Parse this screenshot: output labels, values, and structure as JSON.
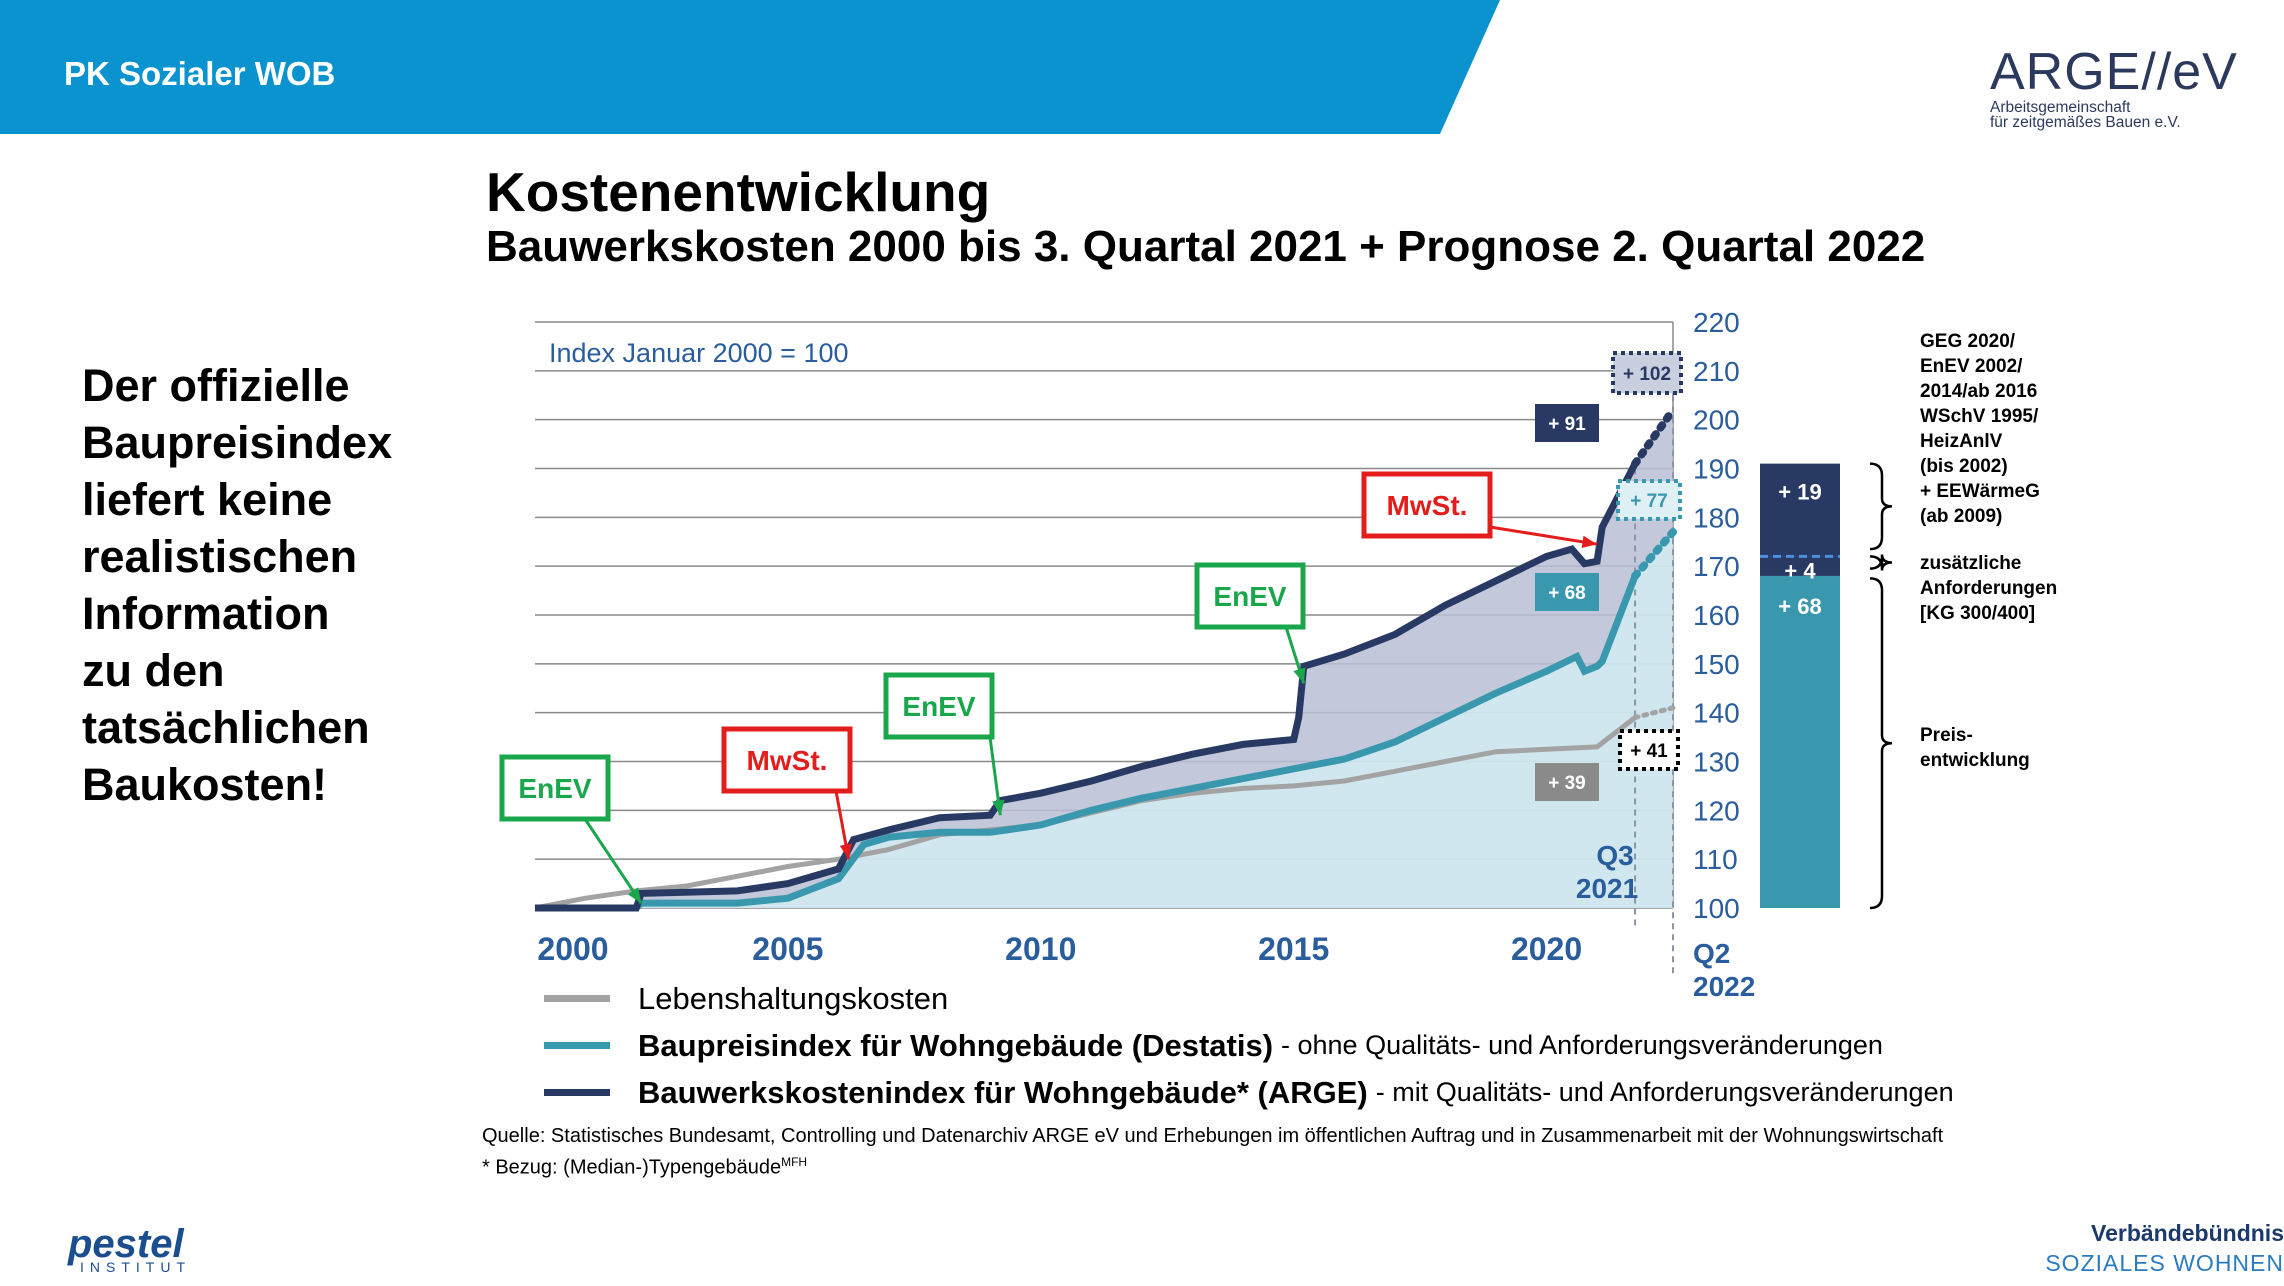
{
  "header": {
    "title": "PK Sozialer WOB",
    "logo_main": "ARGE//eV",
    "logo_line1": "Arbeitsgemeinschaft",
    "logo_line2": "für zeitgemäßes Bauen e.V."
  },
  "slide": {
    "title": "Kostenentwicklung",
    "subtitle": "Bauwerkskosten 2000 bis 3. Quartal 2021 + Prognose 2. Quartal 2022",
    "left_text": [
      "Der offizielle",
      "Baupreisindex",
      "liefert keine",
      "realistischen",
      "Information",
      "zu den",
      "tatsächlichen",
      "Baukosten!"
    ]
  },
  "chart_data": {
    "type": "line",
    "index_note": "Index Januar 2000 = 100",
    "ylim": [
      100,
      220
    ],
    "yticks": [
      100,
      110,
      120,
      130,
      140,
      150,
      160,
      170,
      180,
      190,
      200,
      210,
      220
    ],
    "xlim": [
      2000,
      2022.5
    ],
    "xtick_labels": [
      {
        "x": 2000,
        "label": "2000"
      },
      {
        "x": 2005,
        "label": "2005"
      },
      {
        "x": 2010,
        "label": "2010"
      },
      {
        "x": 2015,
        "label": "2015"
      },
      {
        "x": 2020,
        "label": "2020"
      }
    ],
    "q3_label": [
      "Q3",
      "2021"
    ],
    "q2_label": [
      "Q2",
      "2022"
    ],
    "grid": true,
    "series": [
      {
        "name": "Lebenshaltungskosten",
        "color": "#a3a3a3",
        "points": [
          [
            2000,
            100
          ],
          [
            2001,
            102
          ],
          [
            2002,
            103.5
          ],
          [
            2003,
            104.5
          ],
          [
            2004,
            106.5
          ],
          [
            2005,
            108.5
          ],
          [
            2006,
            110
          ],
          [
            2007,
            112
          ],
          [
            2008,
            115
          ],
          [
            2009,
            116
          ],
          [
            2010,
            117
          ],
          [
            2011,
            119.5
          ],
          [
            2012,
            122
          ],
          [
            2013,
            123.5
          ],
          [
            2014,
            124.5
          ],
          [
            2015,
            125
          ],
          [
            2016,
            126
          ],
          [
            2017,
            128
          ],
          [
            2018,
            130
          ],
          [
            2019,
            132
          ],
          [
            2020,
            132.5
          ],
          [
            2021,
            133
          ],
          [
            2021.75,
            139
          ]
        ],
        "forecast": [
          [
            2021.75,
            139
          ],
          [
            2022.5,
            141
          ]
        ]
      },
      {
        "name": "Baupreisindex für Wohngebäude (Destatis)",
        "note": "- ohne Qualitäts- und Anforderungsveränderungen",
        "color": "#3a98ae",
        "points": [
          [
            2000,
            100
          ],
          [
            2002,
            100
          ],
          [
            2002.1,
            101
          ],
          [
            2004,
            101
          ],
          [
            2004.5,
            101.5
          ],
          [
            2005,
            102
          ],
          [
            2006,
            106
          ],
          [
            2006.5,
            113
          ],
          [
            2007,
            114.5
          ],
          [
            2008,
            115.5
          ],
          [
            2009,
            115.5
          ],
          [
            2010,
            117
          ],
          [
            2011,
            120
          ],
          [
            2012,
            122.5
          ],
          [
            2013,
            124.5
          ],
          [
            2014,
            126.5
          ],
          [
            2015,
            128.5
          ],
          [
            2016,
            130.5
          ],
          [
            2017,
            134
          ],
          [
            2018,
            139
          ],
          [
            2019,
            144
          ],
          [
            2020,
            148.5
          ],
          [
            2020.6,
            151.5
          ],
          [
            2020.75,
            148.5
          ],
          [
            2021,
            149.5
          ],
          [
            2021.1,
            150.5
          ],
          [
            2021.75,
            168
          ]
        ],
        "forecast": [
          [
            2021.75,
            168
          ],
          [
            2022.5,
            177
          ]
        ]
      },
      {
        "name": "Bauwerkskostenindex für Wohngebäude* (ARGE)",
        "note": "- mit Qualitäts- und Anforderungsveränderungen",
        "color": "#283a63",
        "points": [
          [
            2000,
            100
          ],
          [
            2002,
            100
          ],
          [
            2002.1,
            103
          ],
          [
            2004,
            103.5
          ],
          [
            2005,
            105
          ],
          [
            2006,
            108
          ],
          [
            2006.3,
            114
          ],
          [
            2007,
            116
          ],
          [
            2008,
            118.5
          ],
          [
            2009,
            119
          ],
          [
            2009.2,
            122
          ],
          [
            2010,
            123.5
          ],
          [
            2011,
            126
          ],
          [
            2012,
            129
          ],
          [
            2013,
            131.5
          ],
          [
            2014,
            133.5
          ],
          [
            2015,
            134.5
          ],
          [
            2015.1,
            139
          ],
          [
            2015.2,
            149.5
          ],
          [
            2016,
            152
          ],
          [
            2017,
            156
          ],
          [
            2018,
            162
          ],
          [
            2019,
            167
          ],
          [
            2020,
            172
          ],
          [
            2020.5,
            173.5
          ],
          [
            2020.75,
            170.5
          ],
          [
            2021,
            171
          ],
          [
            2021.1,
            178
          ],
          [
            2021.75,
            191
          ]
        ],
        "forecast": [
          [
            2021.75,
            191
          ],
          [
            2022.5,
            202
          ]
        ]
      }
    ],
    "value_labels": [
      {
        "series": 2,
        "text": "+ 91",
        "style": "solid"
      },
      {
        "series": 2,
        "text": "+ 102",
        "style": "dotted"
      },
      {
        "series": 1,
        "text": "+ 68",
        "style": "solid"
      },
      {
        "series": 1,
        "text": "+ 77",
        "style": "dotted"
      },
      {
        "series": 0,
        "text": "+ 39",
        "style": "solid"
      },
      {
        "series": 0,
        "text": "+ 41",
        "style": "dotted"
      }
    ],
    "annotations": [
      {
        "text": "EnEV",
        "kind": "green",
        "target": [
          2002.1,
          101
        ]
      },
      {
        "text": "MwSt.",
        "kind": "red",
        "target": [
          2006.2,
          110
        ]
      },
      {
        "text": "EnEV",
        "kind": "green",
        "target": [
          2009.2,
          119
        ]
      },
      {
        "text": "EnEV",
        "kind": "green",
        "target": [
          2015.2,
          146
        ]
      },
      {
        "text": "MwSt.",
        "kind": "red",
        "target": [
          2021,
          174.5
        ]
      }
    ],
    "stack_bar": {
      "segments": [
        {
          "label": "+ 68",
          "from": 100,
          "to": 168,
          "color": "#3a98ae"
        },
        {
          "label": "+ 4",
          "from": 168,
          "to": 172,
          "color": "#283a63"
        },
        {
          "label": "+ 19",
          "from": 172,
          "to": 191,
          "color": "#283a63"
        }
      ]
    },
    "brackets": [
      {
        "lines": [
          "GEG 2020/",
          "EnEV 2002/",
          "2014/ab 2016",
          "WSchV 1995/",
          "HeizAnlV",
          "(bis 2002)",
          "+ EEWärmeG",
          "(ab 2009)"
        ]
      },
      {
        "lines": [
          "zusätzliche",
          "Anforderungen",
          "[KG 300/400]"
        ]
      },
      {
        "lines": [
          "Preis-",
          "entwicklung"
        ]
      }
    ]
  },
  "source": {
    "line1": "Quelle: Statistisches Bundesamt, Controlling und Datenarchiv ARGE eV und Erhebungen im öffentlichen Auftrag und in Zusammenarbeit mit der Wohnungswirtschaft",
    "line2": "* Bezug: (Median-)Typengebäude",
    "line2_sup": "MFH"
  },
  "footer": {
    "pestel_name": "pestel",
    "pestel_sub": "INSTITUT",
    "alliance_line1": "Verbändebündnis",
    "alliance_line2": "SOZIALES WOHNEN"
  },
  "colors": {
    "header_blue": "#0a93cf",
    "dark_navy": "#283a63",
    "teal": "#3a98ae",
    "grey": "#a3a3a3",
    "green_box": "#1aa64a",
    "red_box": "#e31c1c",
    "axis_label_blue": "#2a5d9c"
  }
}
